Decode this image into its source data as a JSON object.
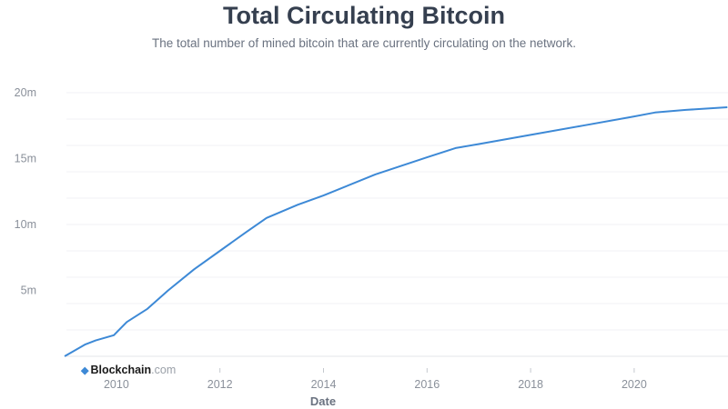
{
  "chart_data": {
    "type": "line",
    "title": "Total Circulating Bitcoin",
    "subtitle": "The total number of mined bitcoin that are currently circulating on the network.",
    "xlabel": "Date",
    "ylabel": "",
    "xlim": [
      2009.0,
      2021.8
    ],
    "ylim": [
      0,
      20
    ],
    "x_ticks": [
      "2010",
      "2012",
      "2014",
      "2016",
      "2018",
      "2020"
    ],
    "y_ticks": [
      "5m",
      "10m",
      "15m",
      "20m"
    ],
    "grid": true,
    "line_color": "#3d89d6",
    "series": [
      {
        "x": [
          2009.0,
          2009.4,
          2009.6,
          2009.95,
          2010.2,
          2010.6,
          2011.0,
          2011.5,
          2012.0,
          2012.5,
          2012.9,
          2013.5,
          2014.0,
          2015.0,
          2016.0,
          2016.55,
          2017.0,
          2018.0,
          2019.0,
          2020.0,
          2020.4,
          2021.0,
          2021.8
        ],
        "y": [
          0,
          0.9,
          1.2,
          1.6,
          2.6,
          3.6,
          5.0,
          6.6,
          8.0,
          9.4,
          10.5,
          11.5,
          12.2,
          13.8,
          15.1,
          15.8,
          16.1,
          16.8,
          17.5,
          18.2,
          18.5,
          18.7,
          18.9
        ]
      }
    ]
  },
  "watermark": {
    "brand": "Blockchain",
    "suffix": ".com"
  }
}
